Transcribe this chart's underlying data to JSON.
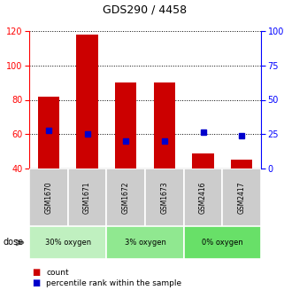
{
  "title": "GDS290 / 4458",
  "samples": [
    "GSM1670",
    "GSM1671",
    "GSM1672",
    "GSM1673",
    "GSM2416",
    "GSM2417"
  ],
  "bar_values": [
    82,
    118,
    90,
    90,
    49,
    45
  ],
  "percentile_values": [
    62,
    60,
    56,
    56,
    61,
    59
  ],
  "groups": [
    {
      "label": "30% oxygen",
      "spans": [
        0,
        2
      ],
      "color": "#b8f0b8"
    },
    {
      "label": "3% oxygen",
      "spans": [
        2,
        4
      ],
      "color": "#90e890"
    },
    {
      "label": "0% oxygen",
      "spans": [
        4,
        6
      ],
      "color": "#68e068"
    }
  ],
  "ylim_left": [
    40,
    120
  ],
  "ylim_right": [
    0,
    100
  ],
  "yticks_left": [
    40,
    60,
    80,
    100,
    120
  ],
  "yticks_right": [
    0,
    25,
    50,
    75,
    100
  ],
  "ytick_labels_right": [
    "0",
    "25",
    "50",
    "75",
    "100%"
  ],
  "bar_color": "#cc0000",
  "marker_color": "#0000cc",
  "bar_width": 0.55,
  "dose_label": "dose",
  "legend_count": "count",
  "legend_percentile": "percentile rank within the sample",
  "group_colors": [
    "#c0f0c0",
    "#90e890",
    "#68e068"
  ],
  "label_bg": "#cccccc"
}
